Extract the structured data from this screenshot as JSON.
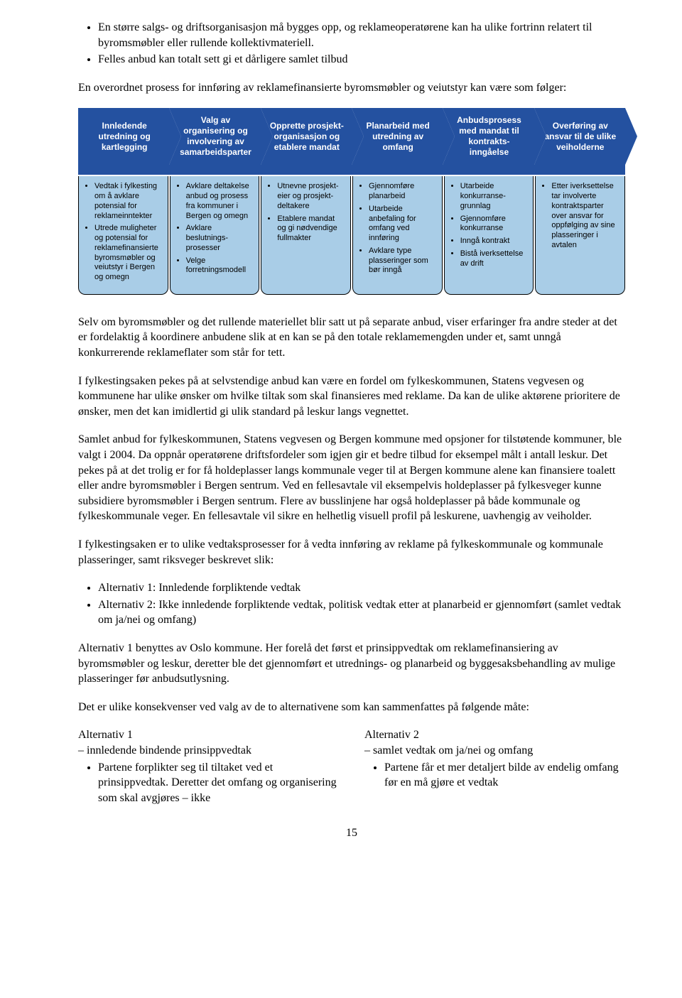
{
  "top_bullets": [
    "En større salgs- og driftsorganisasjon må bygges opp, og reklameoperatørene kan ha ulike fortrinn relatert til byromsmøbler eller rullende kollektivmateriell.",
    "Felles anbud kan totalt sett gi et dårligere samlet tilbud"
  ],
  "intro_para": "En overordnet prosess for innføring av reklamefinansierte byromsmøbler og veiutstyr kan være som følger:",
  "process": {
    "headers": [
      "Innledende utredning og kartlegging",
      "Valg av organisering og involvering av samarbeidsparter",
      "Opprette prosjekt-organisasjon og etablere mandat",
      "Planarbeid med utredning av omfang",
      "Anbudsprosess med mandat til kontrakts-inngåelse",
      "Overføring av ansvar til de ulike veiholderne"
    ],
    "bodies": [
      [
        "Vedtak i fylkesting om å avklare potensial for reklameinntekter",
        "Utrede muligheter og potensial for reklamefinansierte byromsmøbler og veiutstyr i Bergen og omegn"
      ],
      [
        "Avklare deltakelse anbud og prosess fra kommuner i Bergen og omegn",
        "Avklare beslutnings-prosesser",
        "Velge forretningsmodell"
      ],
      [
        "Utnevne prosjekt-eier og prosjekt-deltakere",
        "Etablere mandat og gi nødvendige fullmakter"
      ],
      [
        "Gjennomføre planarbeid",
        "Utarbeide anbefaling for omfang ved innføring",
        "Avklare type plasseringer som bør inngå"
      ],
      [
        "Utarbeide konkurranse-grunnlag",
        "Gjennomføre konkurranse",
        "Inngå kontrakt",
        "Bistå iverksettelse av drift"
      ],
      [
        "Etter iverksettelse tar involverte kontraktsparter over ansvar for oppfølging av sine plasseringer i avtalen"
      ]
    ]
  },
  "p1": "Selv om byromsmøbler og det rullende materiellet blir satt ut på separate anbud, viser erfaringer fra andre steder at det er fordelaktig å koordinere anbudene slik at en kan se på den totale reklamemengden under et, samt unngå konkurrerende reklameflater som står for tett.",
  "p2": "I fylkestingsaken pekes på at selvstendige anbud kan være en fordel om fylkeskommunen, Statens vegvesen og kommunene har ulike ønsker om hvilke tiltak som skal finansieres med reklame. Da kan de ulike aktørene prioritere de ønsker, men det kan imidlertid gi ulik standard på leskur langs vegnettet.",
  "p3": "Samlet anbud for fylkeskommunen, Statens vegvesen og Bergen kommune med opsjoner for tilstøtende kommuner, ble valgt i 2004. Da oppnår operatørene driftsfordeler som igjen gir et bedre tilbud for eksempel målt i antall leskur. Det pekes på at det trolig er for få holdeplasser langs kommunale veger til at Bergen kommune alene kan finansiere toalett eller andre byromsmøbler i Bergen sentrum. Ved en fellesavtale vil eksempelvis holdeplasser på fylkesveger kunne subsidiere byromsmøbler i Bergen sentrum. Flere av busslinjene har også holdeplasser på både kommunale og fylkeskommunale veger. En fellesavtale vil sikre en helhetlig visuell profil på leskurene, uavhengig av veiholder.",
  "p4": "I fylkestingsaken er to ulike vedtaksprosesser for å vedta innføring av reklame på fylkeskommunale og kommunale plasseringer, samt riksveger beskrevet slik:",
  "alt_bullets": [
    "Alternativ 1: Innledende forpliktende vedtak",
    "Alternativ 2: Ikke innledende forpliktende vedtak, politisk vedtak etter at planarbeid er gjennomført (samlet vedtak om ja/nei og omfang)"
  ],
  "p5": "Alternativ 1 benyttes av Oslo kommune. Her forelå det først et prinsippvedtak om reklamefinansiering av byromsmøbler og leskur, deretter ble det gjennomført et utrednings- og planarbeid og byggesaksbehandling av mulige plasseringer før anbudsutlysning.",
  "p6": "Det er ulike konsekvenser ved valg av de to alternativene som kan sammenfattes på følgende måte:",
  "alt1": {
    "title": "Alternativ 1",
    "subtitle": "– innledende bindende prinsippvedtak",
    "bullet": "Partene forplikter seg til tiltaket ved et prinsippvedtak. Deretter det omfang og organisering som skal avgjøres – ikke"
  },
  "alt2": {
    "title": "Alternativ 2",
    "subtitle": "– samlet vedtak om ja/nei og omfang",
    "bullet": "Partene får et mer detaljert bilde av endelig omfang før en må gjøre et vedtak"
  },
  "page_num": "15"
}
